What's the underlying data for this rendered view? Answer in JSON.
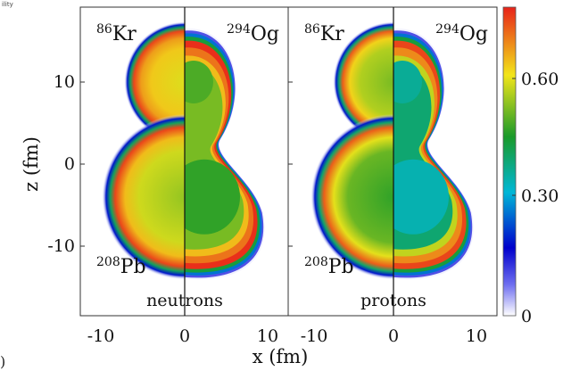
{
  "corner_fragment_top": "ility",
  "corner_fragment_bottom": ")",
  "chart_data": {
    "type": "heatmap",
    "xlabel": "x (fm)",
    "ylabel": "z (fm)",
    "xlim": [
      -15,
      15
    ],
    "ylim": [
      -18,
      18
    ],
    "x_ticks": [
      "-10",
      "0",
      "10"
    ],
    "y_ticks": [
      "10",
      "0",
      "-10"
    ],
    "colorbar": {
      "range": [
        0,
        0.75
      ],
      "ticks": [
        "0.60",
        "0.30",
        "0"
      ],
      "colors": [
        "#ffffff",
        "#0000cc",
        "#00b7d6",
        "#1a9a2a",
        "#f2e51a",
        "#e8231a"
      ]
    },
    "panels": [
      {
        "name": "neutrons",
        "label": "neutrons",
        "nuclei": [
          {
            "name": "86Kr",
            "mass": "86",
            "symbol": "Kr",
            "corner": "top-left"
          },
          {
            "name": "294Og",
            "mass": "294",
            "symbol": "Og",
            "corner": "top-right"
          },
          {
            "name": "208Pb",
            "mass": "208",
            "symbol": "Pb",
            "corner": "bottom-left"
          }
        ],
        "left_half": {
          "upper_center_z": 10,
          "upper_radius": 6.5,
          "lower_center_z": -4,
          "lower_radius": 9,
          "interior_density": 0.52,
          "rim_density": 0.72
        },
        "right_half": {
          "interior_density": 0.5,
          "rim_density": 0.74
        }
      },
      {
        "name": "protons",
        "label": "protons",
        "nuclei": [
          {
            "name": "86Kr",
            "mass": "86",
            "symbol": "Kr",
            "corner": "top-left"
          },
          {
            "name": "294Og",
            "mass": "294",
            "symbol": "Og",
            "corner": "top-right"
          },
          {
            "name": "208Pb",
            "mass": "208",
            "symbol": "Pb",
            "corner": "bottom-left"
          }
        ],
        "left_half": {
          "upper_center_z": 10,
          "upper_radius": 6.5,
          "lower_center_z": -4,
          "lower_radius": 9,
          "interior_density": 0.45,
          "rim_density": 0.7
        },
        "right_half": {
          "interior_density": 0.38,
          "rim_density": 0.72
        }
      }
    ]
  }
}
